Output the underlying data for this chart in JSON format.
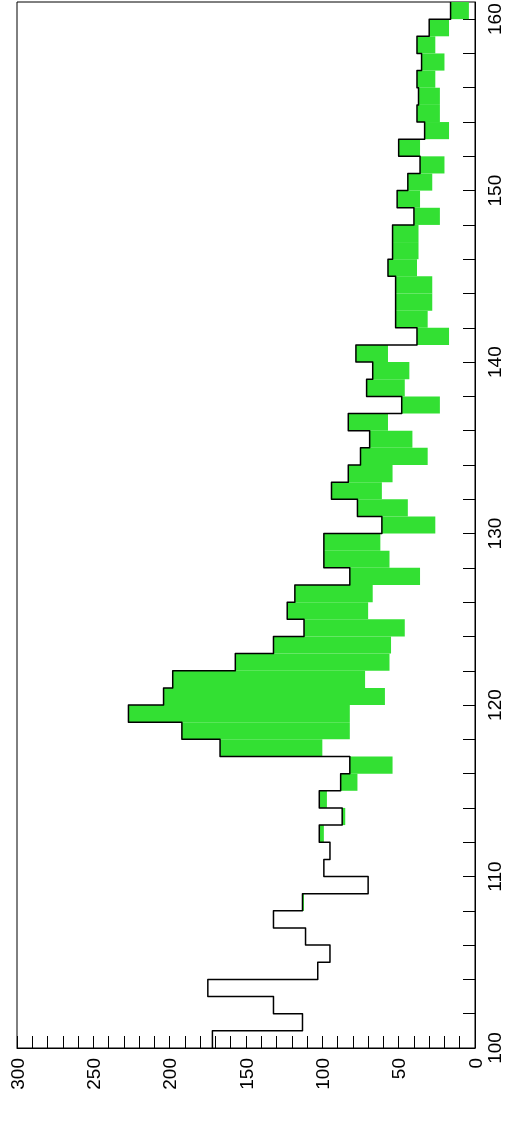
{
  "chart_data": {
    "type": "histogram",
    "orientation": "horizontal",
    "bins": [
      100,
      101,
      102,
      103,
      104,
      105,
      106,
      107,
      108,
      109,
      110,
      111,
      112,
      113,
      114,
      115,
      116,
      117,
      118,
      119,
      120,
      121,
      122,
      123,
      124,
      125,
      126,
      127,
      128,
      129,
      130,
      131,
      132,
      133,
      134,
      135,
      136,
      137,
      138,
      139,
      140,
      141,
      142,
      143,
      144,
      145,
      146,
      147,
      148,
      149,
      150,
      151,
      152,
      153,
      154,
      155,
      156,
      157,
      158,
      159,
      160,
      161
    ],
    "series": [
      {
        "type": "step",
        "color": "#000000",
        "x": [
          100,
          101,
          102,
          103,
          104,
          105,
          106,
          107,
          108,
          109,
          110,
          111,
          112,
          113,
          114,
          115,
          116,
          117,
          118,
          119,
          120,
          121,
          122,
          123,
          124,
          125,
          126,
          127,
          128,
          129,
          130,
          131,
          132,
          133,
          134,
          135,
          136,
          137,
          138,
          139,
          140,
          141,
          142,
          143,
          144,
          145,
          146,
          147,
          148,
          149,
          150,
          151,
          152,
          153,
          154,
          155,
          156,
          157,
          158,
          159,
          160,
          161
        ],
        "values": [
          172,
          113,
          132,
          175,
          103,
          95,
          111,
          132,
          113,
          70,
          99,
          95,
          102,
          87,
          102,
          88,
          82,
          167,
          192,
          227,
          204,
          198,
          157,
          132,
          112,
          123,
          118,
          82,
          99,
          99,
          61,
          77,
          94,
          83,
          75,
          69,
          83,
          48,
          71,
          67,
          78,
          38,
          52,
          52,
          52,
          57,
          54,
          54,
          40,
          51,
          44,
          36,
          50,
          33,
          38,
          37,
          38,
          35,
          38,
          30,
          16,
          16
        ]
      },
      {
        "color": "#33e033",
        "base": [
          null,
          null,
          null,
          null,
          null,
          null,
          null,
          null,
          112,
          null,
          null,
          null,
          99,
          85,
          97,
          77,
          54,
          100,
          82,
          82,
          59,
          72,
          56,
          55,
          46,
          70,
          67,
          36,
          56,
          62,
          26,
          44,
          61,
          54,
          31,
          41,
          57,
          23,
          46,
          43,
          57,
          17,
          31,
          28,
          28,
          38,
          37,
          37,
          23,
          36,
          28,
          20,
          36,
          17,
          23,
          23,
          26,
          20,
          26,
          17,
          4
        ],
        "values": [
          0,
          0,
          0,
          0,
          null,
          0,
          0,
          0,
          1,
          0,
          0,
          null,
          3,
          2,
          5,
          11,
          28,
          67,
          110,
          145,
          145,
          126,
          101,
          77,
          66,
          53,
          51,
          46,
          43,
          37,
          35,
          33,
          33,
          29,
          44,
          28,
          26,
          25,
          25,
          24,
          21,
          21,
          21,
          24,
          24,
          19,
          17,
          17,
          17,
          15,
          16,
          16,
          14,
          16,
          15,
          14,
          12,
          15,
          12,
          13,
          12
        ]
      }
    ],
    "ylim": [
      100,
      161
    ],
    "yticks": [
      100,
      {
        "value": 102,
        "label": null
      },
      {
        "value": 104,
        "label": null
      },
      {
        "value": 106,
        "label": null
      },
      {
        "value": 108,
        "label": null
      },
      110,
      {
        "value": 112,
        "label": null
      },
      {
        "value": 114,
        "label": null
      },
      {
        "value": 116,
        "label": null
      },
      {
        "value": 118,
        "label": null
      },
      120,
      {
        "value": 122,
        "label": null
      },
      {
        "value": 124,
        "label": null
      },
      {
        "value": 126,
        "label": null
      },
      {
        "value": 128,
        "label": null
      },
      130,
      {
        "value": 132,
        "label": null
      },
      {
        "value": 134,
        "label": null
      },
      {
        "value": 136,
        "label": null
      },
      {
        "value": 138,
        "label": null
      },
      140,
      {
        "value": 142,
        "label": null
      },
      {
        "value": 144,
        "label": null
      },
      {
        "value": 146,
        "label": null
      },
      {
        "value": 148,
        "label": null
      },
      150,
      {
        "value": 152,
        "label": null
      },
      {
        "value": 154,
        "label": null
      },
      {
        "value": 156,
        "label": null
      },
      {
        "value": 158,
        "label": null
      },
      160
    ],
    "xlim": [
      300,
      0
    ],
    "xticks": [
      0,
      {
        "value": 10,
        "label": null
      },
      {
        "value": 20,
        "label": null
      },
      {
        "value": 30,
        "label": null
      },
      {
        "value": 40,
        "label": null
      },
      50,
      {
        "value": 60,
        "label": null
      },
      {
        "value": 70,
        "label": null
      },
      {
        "value": 80,
        "label": null
      },
      {
        "value": 90,
        "label": null
      },
      100,
      {
        "value": 110,
        "label": null
      },
      {
        "value": 120,
        "label": null
      },
      {
        "value": 130,
        "label": null
      },
      {
        "value": 140,
        "label": null
      },
      150,
      {
        "value": 160,
        "label": null
      },
      {
        "value": 170,
        "label": null
      },
      {
        "value": 180,
        "label": null
      },
      {
        "value": 190,
        "label": null
      },
      200,
      {
        "value": 210,
        "label": null
      },
      {
        "value": 220,
        "label": null
      },
      {
        "value": 230,
        "label": null
      },
      {
        "value": 240,
        "label": null
      },
      250,
      {
        "value": 260,
        "label": null
      },
      {
        "value": 270,
        "label": null
      },
      {
        "value": 280,
        "label": null
      },
      {
        "value": 290,
        "label": null
      },
      300
    ],
    "grid": false
  }
}
